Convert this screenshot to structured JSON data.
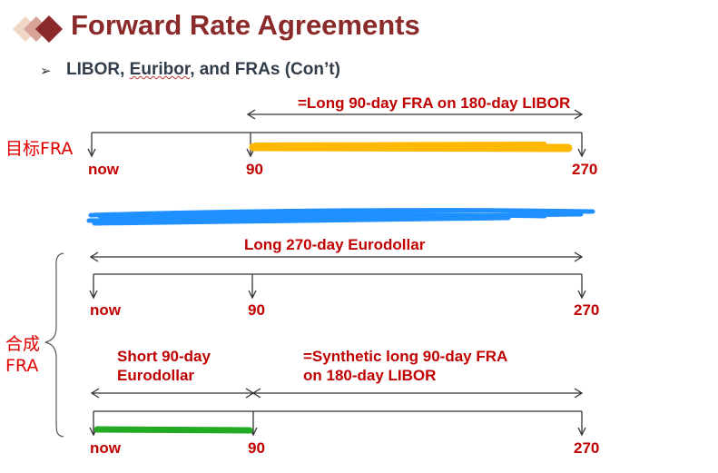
{
  "header": {
    "title": "Forward Rate Agreements",
    "subtitle_prefix": "LIBOR, ",
    "subtitle_euribor": "Euribor",
    "subtitle_suffix": ", and FRAs (Con’t)"
  },
  "target_section": {
    "side_label": "目标FRA",
    "span_label": "=Long 90-day FRA on 180-day LIBOR",
    "ticks": [
      "now",
      "90",
      "270"
    ]
  },
  "synthetic_section": {
    "side_label_line1": "合成",
    "side_label_line2": "FRA",
    "long_label": "Long 270-day Eurodollar",
    "ticks_top": [
      "now",
      "90",
      "270"
    ],
    "short_label_line1": "Short 90-day",
    "short_label_line2": "Eurodollar",
    "synthetic_label_line1": "=Synthetic long 90-day FRA",
    "synthetic_label_line2": "on 180-day LIBOR",
    "ticks_bottom": [
      "now",
      "90",
      "270"
    ]
  },
  "colors": {
    "title": "#8B2A2A",
    "label_red": "#c00000",
    "highlight_orange": "#FFB800",
    "scribble_blue": "#1E90FF",
    "highlight_green": "#22AA22"
  }
}
